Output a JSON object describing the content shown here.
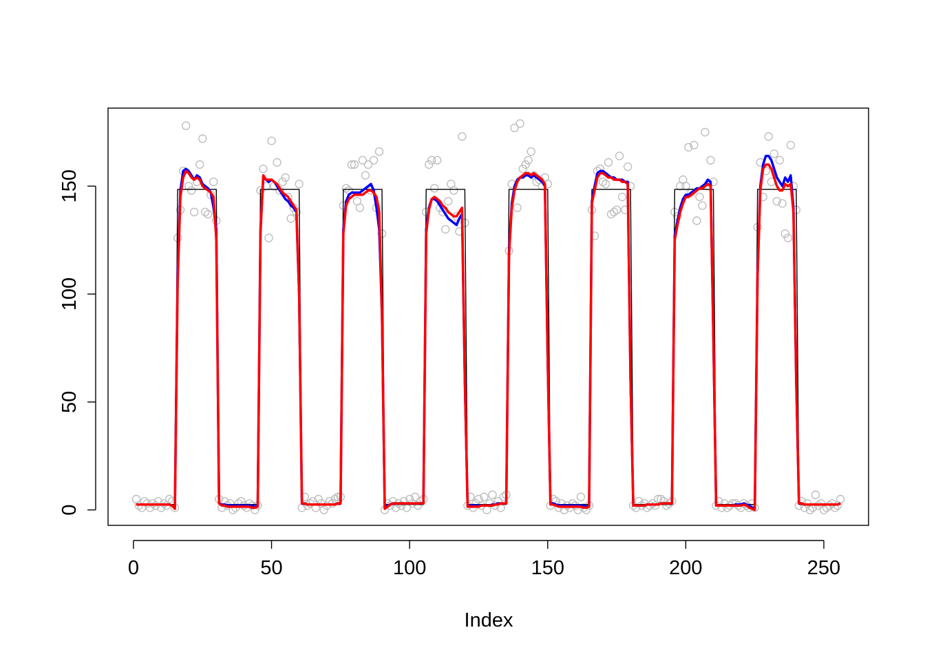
{
  "chart_data": {
    "type": "line",
    "xlabel": "Index",
    "xlim": [
      -9.2,
      266.2
    ],
    "ylim": [
      -7.16,
      186.16
    ],
    "xticks": [
      0,
      50,
      100,
      150,
      200,
      250
    ],
    "yticks": [
      0,
      50,
      100,
      150
    ],
    "x": [
      1,
      2,
      3,
      4,
      5,
      6,
      7,
      8,
      9,
      10,
      11,
      12,
      13,
      14,
      15,
      16,
      17,
      18,
      19,
      20,
      21,
      22,
      23,
      24,
      25,
      26,
      27,
      28,
      29,
      30,
      31,
      32,
      33,
      34,
      35,
      36,
      37,
      38,
      39,
      40,
      41,
      42,
      43,
      44,
      45,
      46,
      47,
      48,
      49,
      50,
      51,
      52,
      53,
      54,
      55,
      56,
      57,
      58,
      59,
      60,
      61,
      62,
      63,
      64,
      65,
      66,
      67,
      68,
      69,
      70,
      71,
      72,
      73,
      74,
      75,
      76,
      77,
      78,
      79,
      80,
      81,
      82,
      83,
      84,
      85,
      86,
      87,
      88,
      89,
      90,
      91,
      92,
      93,
      94,
      95,
      96,
      97,
      98,
      99,
      100,
      101,
      102,
      103,
      104,
      105,
      106,
      107,
      108,
      109,
      110,
      111,
      112,
      113,
      114,
      115,
      116,
      117,
      118,
      119,
      120,
      121,
      122,
      123,
      124,
      125,
      126,
      127,
      128,
      129,
      130,
      131,
      132,
      133,
      134,
      135,
      136,
      137,
      138,
      139,
      140,
      141,
      142,
      143,
      144,
      145,
      146,
      147,
      148,
      149,
      150,
      151,
      152,
      153,
      154,
      155,
      156,
      157,
      158,
      159,
      160,
      161,
      162,
      163,
      164,
      165,
      166,
      167,
      168,
      169,
      170,
      171,
      172,
      173,
      174,
      175,
      176,
      177,
      178,
      179,
      180,
      181,
      182,
      183,
      184,
      185,
      186,
      187,
      188,
      189,
      190,
      191,
      192,
      193,
      194,
      195,
      196,
      197,
      198,
      199,
      200,
      201,
      202,
      203,
      204,
      205,
      206,
      207,
      208,
      209,
      210,
      211,
      212,
      213,
      214,
      215,
      216,
      217,
      218,
      219,
      220,
      221,
      222,
      223,
      224,
      225,
      226,
      227,
      228,
      229,
      230,
      231,
      232,
      233,
      234,
      235,
      236,
      237,
      238,
      239,
      240,
      241,
      242,
      243,
      244,
      245,
      246,
      247,
      248,
      249,
      250,
      251,
      252,
      253,
      254,
      255,
      256
    ],
    "series": [
      {
        "mode": "markers",
        "color": "#bebebe",
        "values": [
          5,
          2,
          1,
          4,
          3,
          1,
          3,
          2,
          4,
          1,
          3,
          2,
          5,
          4,
          1,
          126,
          139,
          157,
          178,
          150,
          148,
          138,
          152,
          160,
          172,
          138,
          137,
          146,
          152,
          134,
          5,
          1,
          4,
          2,
          3,
          0,
          1,
          3,
          4,
          2,
          1,
          3,
          2,
          0,
          2,
          148,
          158,
          150,
          126,
          171,
          150,
          161,
          148,
          152,
          154,
          145,
          135,
          140,
          138,
          151,
          1,
          6,
          2,
          3,
          4,
          1,
          5,
          3,
          0,
          2,
          4,
          3,
          5,
          6,
          6,
          141,
          149,
          148,
          160,
          160,
          143,
          140,
          162,
          155,
          160,
          148,
          162,
          140,
          166,
          128,
          0,
          3,
          2,
          4,
          1,
          3,
          2,
          4,
          1,
          5,
          3,
          6,
          2,
          4,
          5,
          138,
          160,
          162,
          149,
          162,
          140,
          138,
          130,
          143,
          151,
          148,
          136,
          129,
          173,
          133,
          2,
          6,
          1,
          3,
          5,
          2,
          6,
          0,
          3,
          7,
          2,
          4,
          1,
          6,
          7,
          120,
          151,
          177,
          140,
          179,
          158,
          160,
          162,
          166,
          155,
          152,
          153,
          150,
          154,
          151,
          2,
          5,
          4,
          1,
          3,
          0,
          2,
          1,
          3,
          2,
          0,
          6,
          1,
          0,
          2,
          139,
          127,
          157,
          158,
          152,
          151,
          161,
          137,
          138,
          139,
          164,
          145,
          139,
          159,
          150,
          2,
          1,
          4,
          2,
          3,
          1,
          2,
          3,
          2,
          5,
          5,
          4,
          2,
          3,
          4,
          138,
          136,
          150,
          153,
          150,
          168,
          147,
          169,
          134,
          145,
          141,
          175,
          150,
          162,
          152,
          2,
          4,
          1,
          3,
          1,
          2,
          3,
          3,
          2,
          1,
          3,
          2,
          1,
          3,
          1,
          131,
          161,
          145,
          157,
          173,
          152,
          165,
          143,
          162,
          142,
          128,
          126,
          169,
          150,
          139,
          2,
          4,
          1,
          3,
          0,
          1,
          7,
          2,
          3,
          0,
          1,
          2,
          3,
          1,
          2,
          5
        ]
      },
      {
        "mode": "lines",
        "color": "#000000",
        "width": 1.4,
        "values": [
          2.5,
          2.5,
          2.5,
          2.5,
          2.5,
          2.5,
          2.5,
          2.5,
          2.5,
          2.5,
          2.5,
          2.5,
          2.5,
          2.5,
          2.5,
          148.5,
          148.5,
          148.5,
          148.5,
          148.5,
          148.5,
          148.5,
          148.5,
          148.5,
          148.5,
          148.5,
          148.5,
          148.5,
          148.5,
          148.5,
          2.5,
          2.5,
          2.5,
          2.5,
          2.5,
          2.5,
          2.5,
          2.5,
          2.5,
          2.5,
          2.5,
          2.5,
          2.5,
          2.5,
          2.5,
          148.5,
          148.5,
          148.5,
          148.5,
          148.5,
          148.5,
          148.5,
          148.5,
          148.5,
          148.5,
          148.5,
          148.5,
          148.5,
          148.5,
          148.5,
          2.5,
          2.5,
          2.5,
          2.5,
          2.5,
          2.5,
          2.5,
          2.5,
          2.5,
          2.5,
          2.5,
          2.5,
          2.5,
          2.5,
          2.5,
          148.5,
          148.5,
          148.5,
          148.5,
          148.5,
          148.5,
          148.5,
          148.5,
          148.5,
          148.5,
          148.5,
          148.5,
          148.5,
          148.5,
          148.5,
          2.5,
          2.5,
          2.5,
          2.5,
          2.5,
          2.5,
          2.5,
          2.5,
          2.5,
          2.5,
          2.5,
          2.5,
          2.5,
          2.5,
          2.5,
          148.5,
          148.5,
          148.5,
          148.5,
          148.5,
          148.5,
          148.5,
          148.5,
          148.5,
          148.5,
          148.5,
          148.5,
          148.5,
          148.5,
          148.5,
          2.5,
          2.5,
          2.5,
          2.5,
          2.5,
          2.5,
          2.5,
          2.5,
          2.5,
          2.5,
          2.5,
          2.5,
          2.5,
          2.5,
          2.5,
          148.5,
          148.5,
          148.5,
          148.5,
          148.5,
          148.5,
          148.5,
          148.5,
          148.5,
          148.5,
          148.5,
          148.5,
          148.5,
          148.5,
          148.5,
          2.5,
          2.5,
          2.5,
          2.5,
          2.5,
          2.5,
          2.5,
          2.5,
          2.5,
          2.5,
          2.5,
          2.5,
          2.5,
          2.5,
          2.5,
          148.5,
          148.5,
          148.5,
          148.5,
          148.5,
          148.5,
          148.5,
          148.5,
          148.5,
          148.5,
          148.5,
          148.5,
          148.5,
          148.5,
          148.5,
          2.5,
          2.5,
          2.5,
          2.5,
          2.5,
          2.5,
          2.5,
          2.5,
          2.5,
          2.5,
          2.5,
          2.5,
          2.5,
          2.5,
          2.5,
          148.5,
          148.5,
          148.5,
          148.5,
          148.5,
          148.5,
          148.5,
          148.5,
          148.5,
          148.5,
          148.5,
          148.5,
          148.5,
          148.5,
          148.5,
          2.5,
          2.5,
          2.5,
          2.5,
          2.5,
          2.5,
          2.5,
          2.5,
          2.5,
          2.5,
          2.5,
          2.5,
          2.5,
          2.5,
          2.5,
          148.5,
          148.5,
          148.5,
          148.5,
          148.5,
          148.5,
          148.5,
          148.5,
          148.5,
          148.5,
          148.5,
          148.5,
          148.5,
          148.5,
          148.5,
          2.5,
          2.5,
          2.5,
          2.5,
          2.5,
          2.5,
          2.5,
          2.5,
          2.5,
          2.5,
          2.5,
          2.5,
          2.5,
          2.5,
          2.5,
          2.5
        ]
      },
      {
        "mode": "lines",
        "color": "#0000ff",
        "width": 3.5,
        "values": [
          2.5,
          2.5,
          2.5,
          2.5,
          2.5,
          2.5,
          2.5,
          2.5,
          2.5,
          2.5,
          2.5,
          2.5,
          2.5,
          2,
          1,
          110,
          148,
          157,
          158,
          157,
          155,
          153,
          155,
          154,
          151,
          150,
          149,
          147,
          140,
          130,
          3,
          2.5,
          2.5,
          2,
          2,
          2,
          2,
          2,
          2,
          2,
          2,
          2,
          2,
          1.5,
          2,
          130,
          154,
          153,
          152,
          153,
          152,
          150,
          148,
          146,
          144,
          143,
          141,
          140,
          138,
          100,
          3,
          3,
          2.5,
          2.5,
          2.5,
          2.5,
          2.5,
          2.5,
          2.5,
          2.5,
          2.5,
          2.5,
          2.5,
          3,
          3,
          130,
          143,
          146,
          147,
          147,
          147,
          147,
          148,
          149,
          150,
          151,
          148,
          140,
          130,
          90,
          1,
          2,
          2.5,
          3,
          3,
          3,
          3,
          3,
          3,
          3,
          3,
          3,
          3,
          3,
          3,
          130,
          140,
          144,
          144,
          143,
          141,
          139,
          137,
          135,
          134,
          133,
          132,
          135,
          137,
          60,
          2,
          2,
          2,
          2,
          2,
          2,
          2,
          2,
          2,
          2.5,
          2.5,
          3,
          3,
          3,
          3,
          120,
          142,
          150,
          153,
          154,
          154,
          155,
          155,
          154,
          155,
          154,
          153,
          152,
          150,
          70,
          3,
          3,
          2.5,
          2,
          2,
          2,
          2,
          2,
          2,
          2,
          2,
          2,
          2,
          1.5,
          2,
          143,
          150,
          156,
          157,
          157,
          156,
          155,
          154,
          154,
          153,
          153,
          153,
          152,
          152,
          60,
          2,
          2,
          2,
          2,
          2,
          2.5,
          2.5,
          2.5,
          2.5,
          2.5,
          3,
          3,
          3,
          3,
          3,
          127,
          134,
          140,
          144,
          146,
          146,
          147,
          148,
          149,
          149,
          150,
          151,
          153,
          152,
          80,
          2,
          2,
          2,
          2,
          2,
          2,
          2,
          2.5,
          2.5,
          2.5,
          3,
          2.5,
          2,
          1,
          1,
          110,
          150,
          160,
          164,
          164,
          162,
          158,
          154,
          152,
          150,
          154,
          152,
          155,
          140,
          60,
          3,
          3,
          2.5,
          2.5,
          2.5,
          2.5,
          2.5,
          2.5,
          2.5,
          2.5,
          2.5,
          2.5,
          2.5,
          2.5,
          2.5,
          3
        ]
      },
      {
        "mode": "lines",
        "color": "#ff0000",
        "width": 3.5,
        "values": [
          2.5,
          2.5,
          2.5,
          2.5,
          2.5,
          2.5,
          2.5,
          2.5,
          2.5,
          2.5,
          2.5,
          2.5,
          2.5,
          2,
          0.5,
          105,
          145,
          154,
          157,
          156,
          154,
          153,
          154,
          153,
          150,
          149,
          148,
          147,
          145,
          125,
          3,
          2,
          2,
          1.5,
          1.5,
          1.5,
          1.5,
          1.5,
          1.5,
          1.5,
          1.5,
          1.5,
          1,
          1,
          1.5,
          128,
          155,
          153,
          153,
          153,
          152,
          151,
          149,
          147,
          146,
          145,
          143,
          141,
          139,
          100,
          3,
          3,
          2.5,
          2.5,
          2.5,
          2.5,
          2.5,
          2.5,
          2.5,
          2.5,
          2.5,
          2.5,
          2.5,
          3,
          3,
          128,
          141,
          144,
          145,
          146,
          146,
          146,
          146,
          147,
          148,
          148,
          147,
          145,
          138,
          90,
          0.5,
          1.5,
          2.5,
          3,
          3,
          3,
          3,
          3,
          3,
          3,
          3,
          3,
          3,
          3,
          3,
          128,
          139,
          144,
          145,
          144,
          143,
          141,
          140,
          138,
          137,
          136,
          136,
          138,
          140,
          60,
          1.5,
          1.5,
          1.5,
          1.5,
          1.5,
          2,
          2,
          2,
          2,
          2,
          2.5,
          2.5,
          3,
          3,
          3,
          118,
          140,
          148,
          152,
          154,
          155,
          156,
          156,
          155,
          156,
          155,
          154,
          153,
          151,
          70,
          2.5,
          2.5,
          2,
          1.5,
          1.5,
          1.5,
          1.5,
          1.5,
          1.5,
          1.5,
          1.5,
          1.5,
          1,
          1,
          1.5,
          142,
          148,
          154,
          156,
          156,
          155,
          154,
          154,
          153,
          153,
          153,
          152,
          152,
          151,
          60,
          2,
          2,
          2,
          2,
          2,
          2.5,
          2.5,
          2.5,
          2.5,
          2.5,
          3,
          3,
          3,
          3,
          3,
          125,
          132,
          138,
          142,
          145,
          145,
          146,
          147,
          148,
          149,
          149,
          150,
          151,
          150,
          80,
          2,
          2,
          2,
          2,
          2,
          2,
          2,
          2,
          2,
          2,
          2.5,
          2,
          1,
          0.5,
          0,
          108,
          148,
          158,
          160,
          160,
          158,
          154,
          150,
          148,
          148,
          151,
          150,
          151,
          138,
          60,
          3,
          3,
          2.5,
          2.5,
          2.5,
          2.5,
          2.5,
          2.5,
          2.5,
          2.5,
          2.5,
          2.5,
          2.5,
          2.5,
          2.5,
          3
        ]
      }
    ]
  }
}
